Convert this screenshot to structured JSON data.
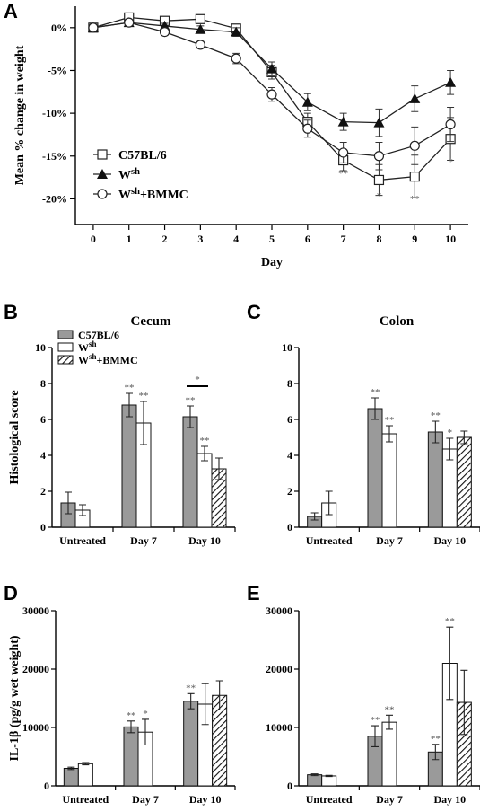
{
  "panels": {
    "A": {
      "letter": "A"
    },
    "B": {
      "letter": "B"
    },
    "C": {
      "letter": "C"
    },
    "D": {
      "letter": "D"
    },
    "E": {
      "letter": "E"
    }
  },
  "colors": {
    "C57BL/6": "#9a9a9a",
    "Wsh": "#ffffff",
    "Wsh+BMMC": "hatched",
    "line": "#222222",
    "error": "#333333"
  },
  "chart_data": [
    {
      "id": "A",
      "type": "line",
      "title": "",
      "xlabel": "Day",
      "ylabel": "Mean % change in weight",
      "x": [
        0,
        1,
        2,
        3,
        4,
        5,
        6,
        7,
        8,
        9,
        10
      ],
      "xlim": [
        -0.5,
        10.5
      ],
      "ylim": [
        -23,
        2.5
      ],
      "yticks": [
        0,
        -5,
        -10,
        -15,
        -20
      ],
      "ytick_labels": [
        "0%",
        "-5%",
        "-10%",
        "-15%",
        "-20%"
      ],
      "legend_position": "bottom-left",
      "legend": [
        {
          "base": "C57BL/6",
          "sup": ""
        },
        {
          "base": "W",
          "sup": "sh"
        },
        {
          "base": "W",
          "sup": "sh",
          "suffix": "+BMMC"
        }
      ],
      "series": [
        {
          "name": "C57BL/6",
          "marker": "square",
          "values": [
            0,
            1.2,
            0.8,
            1.0,
            -0.1,
            -5.2,
            -11.0,
            -15.5,
            -17.8,
            -17.4,
            -13.0
          ],
          "errors": [
            0.3,
            0.4,
            0.4,
            0.4,
            0.5,
            0.8,
            1.0,
            1.2,
            1.8,
            2.5,
            2.5
          ]
        },
        {
          "name": "Wsh",
          "marker": "triangle",
          "values": [
            0,
            0.6,
            0.2,
            -0.2,
            -0.5,
            -4.8,
            -8.7,
            -11.0,
            -11.1,
            -8.3,
            -6.4
          ],
          "errors": [
            0.2,
            0.3,
            0.3,
            0.4,
            0.5,
            0.8,
            1.0,
            1.0,
            1.6,
            1.5,
            1.4
          ]
        },
        {
          "name": "Wsh+BMMC",
          "marker": "circle",
          "values": [
            0,
            0.6,
            -0.5,
            -2.0,
            -3.6,
            -7.8,
            -11.8,
            -14.6,
            -15.0,
            -13.8,
            -11.3
          ],
          "errors": [
            0.2,
            0.3,
            0.4,
            0.4,
            0.6,
            0.8,
            1.0,
            1.2,
            1.6,
            2.2,
            2.0
          ]
        }
      ],
      "annotations": [
        {
          "x": 7,
          "y": -17.4,
          "text": "**"
        },
        {
          "x": 8,
          "y": -20.0,
          "text": "*"
        },
        {
          "x": 9,
          "y": -20.4,
          "text": "**"
        },
        {
          "x": 10,
          "y": -16.0,
          "text": "*"
        }
      ]
    },
    {
      "id": "B",
      "type": "bar",
      "title": "Cecum",
      "xlabel": "",
      "ylabel": "Histological score",
      "categories": [
        "Untreated",
        "Day 7",
        "Day 10"
      ],
      "ylim": [
        0,
        10
      ],
      "yticks": [
        0,
        2,
        4,
        6,
        8,
        10
      ],
      "legend_position": "top-left",
      "legend": [
        {
          "base": "C57BL/6",
          "sup": ""
        },
        {
          "base": "W",
          "sup": "sh"
        },
        {
          "base": "W",
          "sup": "sh",
          "suffix": "+BMMC"
        }
      ],
      "series": [
        {
          "name": "C57BL/6",
          "values": [
            1.35,
            6.8,
            6.15
          ],
          "errors": [
            0.6,
            0.65,
            0.6
          ],
          "stars": [
            "",
            "**",
            "**"
          ]
        },
        {
          "name": "Wsh",
          "values": [
            0.95,
            5.8,
            4.1
          ],
          "errors": [
            0.3,
            1.2,
            0.4
          ],
          "stars": [
            "",
            "**",
            "**"
          ]
        },
        {
          "name": "Wsh+BMMC",
          "values": [
            null,
            null,
            3.25
          ],
          "errors": [
            null,
            null,
            0.6
          ],
          "stars": [
            "",
            "",
            ""
          ]
        }
      ],
      "significance_bar": {
        "category": "Day 10",
        "text": "*"
      }
    },
    {
      "id": "C",
      "type": "bar",
      "title": "Colon",
      "xlabel": "",
      "ylabel": "",
      "categories": [
        "Untreated",
        "Day 7",
        "Day 10"
      ],
      "ylim": [
        0,
        10
      ],
      "yticks": [
        0,
        2,
        4,
        6,
        8,
        10
      ],
      "series": [
        {
          "name": "C57BL/6",
          "values": [
            0.6,
            6.6,
            5.3
          ],
          "errors": [
            0.2,
            0.6,
            0.6
          ],
          "stars": [
            "",
            "**",
            "**"
          ]
        },
        {
          "name": "Wsh",
          "values": [
            1.35,
            5.2,
            4.35
          ],
          "errors": [
            0.65,
            0.45,
            0.6
          ],
          "stars": [
            "",
            "**",
            "*"
          ]
        },
        {
          "name": "Wsh+BMMC",
          "values": [
            null,
            null,
            5.0
          ],
          "errors": [
            null,
            null,
            0.35
          ],
          "stars": [
            "",
            "",
            ""
          ]
        }
      ]
    },
    {
      "id": "D",
      "type": "bar",
      "title": "",
      "xlabel": "",
      "ylabel": "IL-1β (pg/g wet weight)",
      "categories": [
        "Untreated",
        "Day 7",
        "Day 10"
      ],
      "ylim": [
        0,
        30000
      ],
      "yticks": [
        0,
        10000,
        20000,
        30000
      ],
      "series": [
        {
          "name": "C57BL/6",
          "values": [
            3000,
            10100,
            14500
          ],
          "errors": [
            200,
            1000,
            1300
          ],
          "stars": [
            "",
            "**",
            "**"
          ]
        },
        {
          "name": "Wsh",
          "values": [
            3800,
            9200,
            14000
          ],
          "errors": [
            200,
            2200,
            3500
          ],
          "stars": [
            "",
            "*",
            ""
          ]
        },
        {
          "name": "Wsh+BMMC",
          "values": [
            null,
            null,
            15500
          ],
          "errors": [
            null,
            null,
            2500
          ],
          "stars": [
            "",
            "",
            ""
          ]
        }
      ]
    },
    {
      "id": "E",
      "type": "bar",
      "title": "",
      "xlabel": "",
      "ylabel": "",
      "categories": [
        "Untreated",
        "Day 7",
        "Day 10"
      ],
      "ylim": [
        0,
        30000
      ],
      "yticks": [
        0,
        10000,
        20000,
        30000
      ],
      "series": [
        {
          "name": "C57BL/6",
          "values": [
            1900,
            8500,
            5800
          ],
          "errors": [
            150,
            1800,
            1300
          ],
          "stars": [
            "",
            "**",
            "**"
          ]
        },
        {
          "name": "Wsh",
          "values": [
            1700,
            10900,
            21000
          ],
          "errors": [
            100,
            1200,
            6200
          ],
          "stars": [
            "",
            "**",
            "**"
          ]
        },
        {
          "name": "Wsh+BMMC",
          "values": [
            null,
            null,
            14300
          ],
          "errors": [
            null,
            null,
            5500
          ],
          "stars": [
            "",
            "",
            ""
          ]
        }
      ]
    }
  ]
}
